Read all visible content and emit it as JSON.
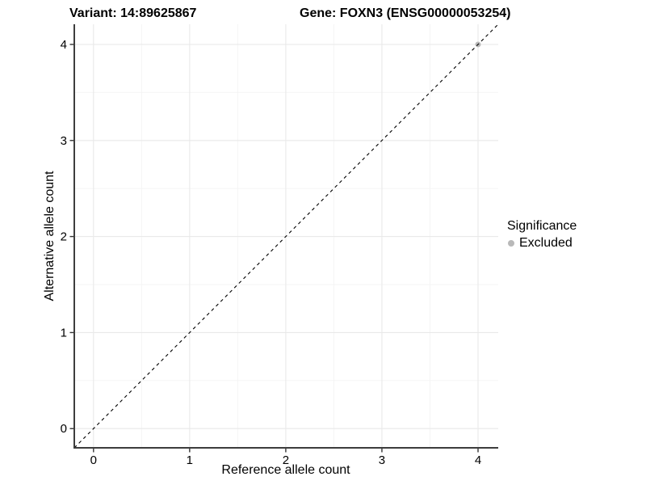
{
  "title": {
    "variant": "Variant: 14:89625867",
    "gene": "Gene: FOXN3 (ENSG00000053254)"
  },
  "legend": {
    "title": "Significance",
    "items": [
      {
        "label": "Excluded",
        "color": "#b9b9b9"
      }
    ]
  },
  "chart_data": {
    "type": "scatter",
    "title": "Variant: 14:89625867   Gene: FOXN3 (ENSG00000053254)",
    "xlabel": "Reference allele count",
    "ylabel": "Alternative allele count",
    "xlim": [
      -0.2,
      4.21
    ],
    "ylim": [
      -0.2,
      4.21
    ],
    "x_ticks": [
      0,
      1,
      2,
      3,
      4
    ],
    "y_ticks": [
      0,
      1,
      2,
      3,
      4
    ],
    "x_minor_ticks": [
      0.5,
      1.5,
      2.5,
      3.5
    ],
    "y_minor_ticks": [
      0.5,
      1.5,
      2.5,
      3.5
    ],
    "grid": "on",
    "legend_title": "Significance",
    "legend_position": "right",
    "series": [
      {
        "name": "Excluded",
        "color": "#b9b9b9",
        "points": [
          {
            "x": 4,
            "y": 4
          }
        ]
      }
    ],
    "reference_line": {
      "type": "identity",
      "slope": 1,
      "intercept": 0,
      "style": "dashed",
      "color": "#000000"
    }
  },
  "colors": {
    "background": "#ffffff",
    "grid_major": "#e9e9e9",
    "grid_minor": "#f4f4f4",
    "axis_line": "#3d3d3d",
    "tick_mark": "#333333",
    "tick_label": "#000000",
    "point": "#b9b9b9",
    "dashed_line": "#000000"
  }
}
